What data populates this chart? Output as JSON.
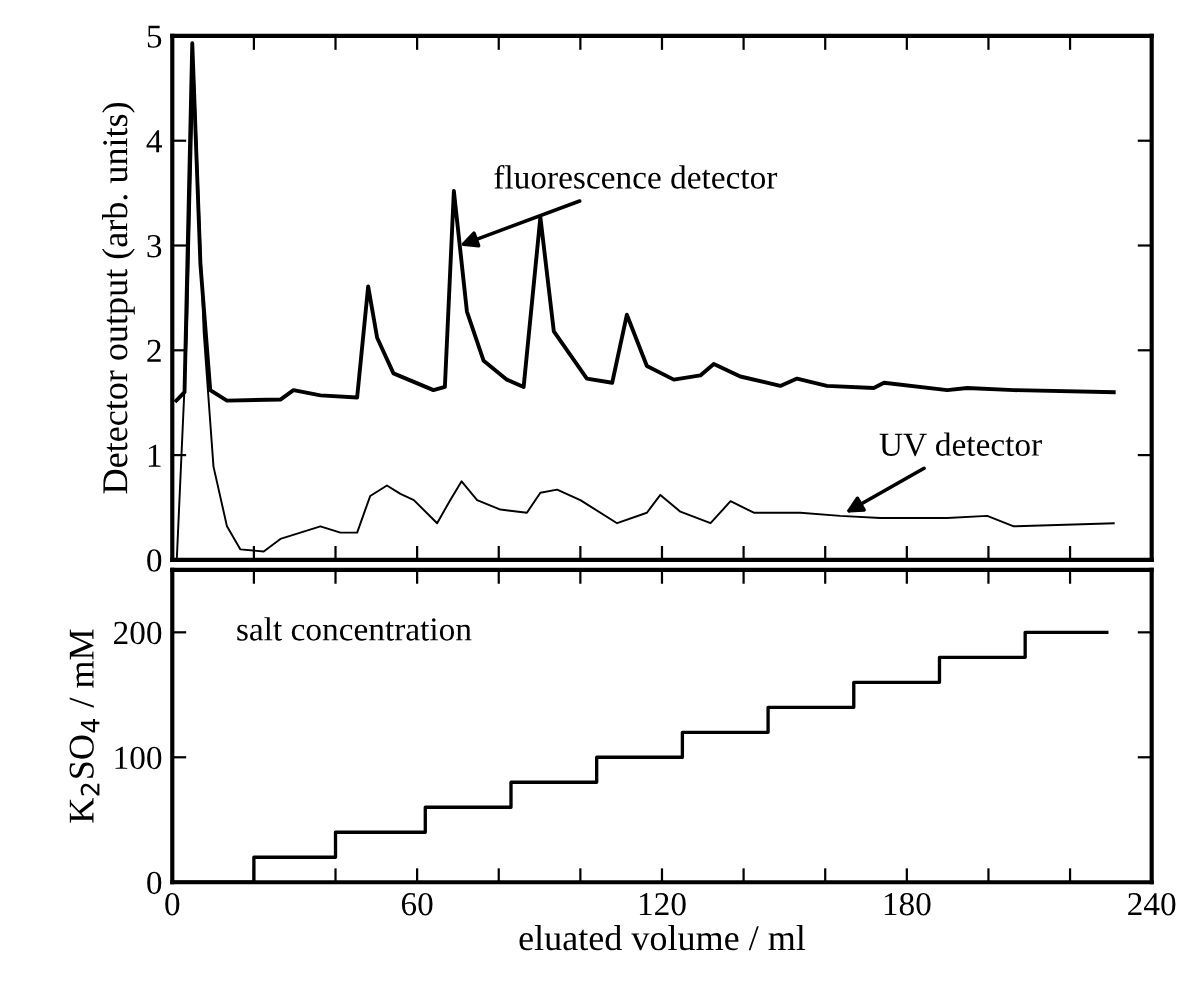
{
  "chart_data": [
    {
      "type": "line",
      "ylabel": "Detector output (arb. units)",
      "xlim": [
        0,
        240
      ],
      "ylim": [
        0,
        5
      ],
      "xticks": [
        0,
        20,
        40,
        60,
        80,
        100,
        120,
        140,
        160,
        180,
        200,
        220,
        240
      ],
      "yticks": [
        0,
        1,
        2,
        3,
        4,
        5
      ],
      "tick_labels": "y",
      "grid": false,
      "legend": false,
      "series": [
        {
          "color": "#000000",
          "x": [
            1,
            3,
            4.9,
            6.9,
            9.3,
            13.4,
            26.5,
            29.7,
            36.3,
            45.3,
            48,
            50.2,
            54.2,
            64,
            66.8,
            69,
            72.2,
            76.3,
            82,
            86.1,
            90.2,
            93.5,
            101.6,
            107.8,
            111.4,
            116.3,
            122.9,
            129.4,
            132.7,
            139.2,
            149,
            153.1,
            160.4,
            171.9,
            174.4,
            189.9,
            194.8,
            206.2,
            230.7
          ],
          "values": [
            1.52,
            1.6,
            4.93,
            2.82,
            1.62,
            1.52,
            1.53,
            1.62,
            1.57,
            1.55,
            2.61,
            2.12,
            1.78,
            1.62,
            1.65,
            3.52,
            2.37,
            1.9,
            1.72,
            1.65,
            3.27,
            2.18,
            1.73,
            1.69,
            2.34,
            1.85,
            1.72,
            1.76,
            1.87,
            1.75,
            1.66,
            1.73,
            1.66,
            1.64,
            1.69,
            1.62,
            1.64,
            1.62,
            1.6
          ]
        },
        {
          "color": "#000000",
          "x": [
            1.1,
            3.6,
            5.2,
            7.7,
            10.1,
            13.4,
            16.7,
            22.4,
            26.5,
            31.4,
            36.3,
            41.2,
            45.3,
            48.5,
            52.6,
            55.9,
            59.2,
            64.9,
            68.1,
            70.9,
            74.7,
            80.4,
            86.9,
            90.2,
            94.3,
            100,
            109,
            116.3,
            119.6,
            124.5,
            131.9,
            136.8,
            142.5,
            153.9,
            163.7,
            173.5,
            189.9,
            199.7,
            206.2,
            230.7
          ],
          "values": [
            0,
            2.17,
            4.72,
            2.17,
            0.89,
            0.32,
            0.1,
            0.08,
            0.2,
            0.26,
            0.32,
            0.26,
            0.26,
            0.61,
            0.71,
            0.63,
            0.57,
            0.35,
            0.57,
            0.75,
            0.57,
            0.48,
            0.45,
            0.64,
            0.67,
            0.57,
            0.35,
            0.45,
            0.62,
            0.46,
            0.35,
            0.56,
            0.45,
            0.45,
            0.42,
            0.4,
            0.4,
            0.42,
            0.32,
            0.35
          ]
        }
      ],
      "annotations": [
        {
          "text": "fluorescence detector",
          "x": 70.5,
          "y": 3.0
        },
        {
          "text": "UV detector",
          "x": 165,
          "y": 0.45
        }
      ]
    },
    {
      "type": "step",
      "xlabel": "eluated volume / ml",
      "ylabel": "K$_{2}$SO$_{4}$ / mM",
      "xlim": [
        0,
        240
      ],
      "ylim": [
        0,
        250
      ],
      "xticks": [
        0,
        {
          "value": 20,
          "label": null
        },
        {
          "value": 40,
          "label": null
        },
        60,
        {
          "value": 80,
          "label": null
        },
        {
          "value": 100,
          "label": null
        },
        120,
        {
          "value": 140,
          "label": null
        },
        {
          "value": 160,
          "label": null
        },
        180,
        {
          "value": 200,
          "label": null
        },
        {
          "value": 220,
          "label": null
        },
        240
      ],
      "yticks": [
        0,
        100,
        200
      ],
      "grid": false,
      "legend": false,
      "series": [
        {
          "color": "#000000",
          "x": [
            0,
            20,
            40,
            62,
            83,
            104,
            125,
            146,
            167,
            188,
            209,
            229
          ],
          "values": [
            0,
            20,
            40,
            60,
            80,
            100,
            120,
            140,
            160,
            180,
            200,
            200
          ]
        }
      ],
      "annotations": [
        "salt concentration"
      ]
    }
  ]
}
